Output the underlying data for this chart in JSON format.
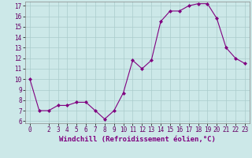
{
  "x": [
    0,
    1,
    2,
    3,
    4,
    5,
    6,
    7,
    8,
    9,
    10,
    11,
    12,
    13,
    14,
    15,
    16,
    17,
    18,
    19,
    20,
    21,
    22,
    23
  ],
  "y": [
    10,
    7,
    7,
    7.5,
    7.5,
    7.8,
    7.8,
    7,
    6.2,
    7,
    8.7,
    11.8,
    11.0,
    11.8,
    15.5,
    16.5,
    16.5,
    17.0,
    17.2,
    17.2,
    15.8,
    13.0,
    12.0,
    11.5
  ],
  "line_color": "#800080",
  "marker_color": "#800080",
  "bg_color": "#cce8e8",
  "grid_color": "#b0d0d0",
  "xlabel": "Windchill (Refroidissement éolien,°C)",
  "xlim": [
    -0.5,
    23.5
  ],
  "ylim": [
    5.8,
    17.4
  ],
  "yticks": [
    6,
    7,
    8,
    9,
    10,
    11,
    12,
    13,
    14,
    15,
    16,
    17
  ],
  "xticks": [
    0,
    2,
    3,
    4,
    5,
    6,
    7,
    8,
    9,
    10,
    11,
    12,
    13,
    14,
    15,
    16,
    17,
    18,
    19,
    20,
    21,
    22,
    23
  ],
  "tick_fontsize": 5.5,
  "label_fontsize": 6.5
}
